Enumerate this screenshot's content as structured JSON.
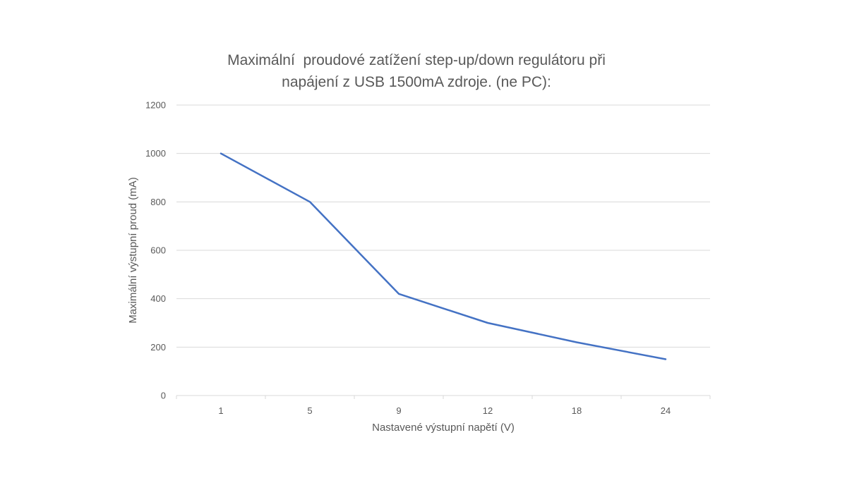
{
  "chart_data": {
    "type": "line",
    "title_line1": "Maximální  proudové zatížení step-up/down regulátoru při",
    "title_line2": "napájení z USB 1500mA zdroje. (ne PC):",
    "xlabel": "Nastavené výstupní napětí (V)",
    "ylabel": "Maximální výstupní proud (mA)",
    "categories": [
      "1",
      "5",
      "9",
      "12",
      "18",
      "24"
    ],
    "series": [
      {
        "values": [
          1000,
          800,
          420,
          300,
          220,
          150
        ]
      }
    ],
    "ylim": [
      0,
      1200
    ],
    "yticks": [
      "0",
      "200",
      "400",
      "600",
      "800",
      "1000",
      "1200"
    ],
    "grid": true,
    "line_color": "#4472C4",
    "grid_color": "#D9D9D9",
    "text_color": "#595959"
  }
}
